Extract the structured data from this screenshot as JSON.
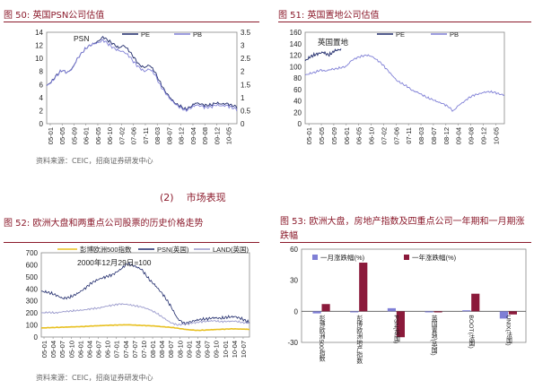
{
  "fig50": {
    "title": "图 50: 英国PSN公司估值"
  },
  "fig51": {
    "title": "图 51: 英国置地公司估值"
  },
  "fig52": {
    "title": "图 52: 欧洲大盘和两重点公司股票的历史价格走势"
  },
  "fig53": {
    "title": "图 53: 欧洲大盘，房地产指数及四重点公司一年期和一月期涨跌幅"
  },
  "source_top": "资料来源：CEIC，招商证券研发中心",
  "source_bottom": "资料来源：CEIC，招商证券研发中心",
  "section": {
    "num": "(2)",
    "title": "市场表现"
  },
  "colors": {
    "pe": "#1f2a6b",
    "pb": "#7f7fd6",
    "index": "#e8c020",
    "land": "#9a9acc",
    "bar1": "#7f7fd6",
    "bar2": "#8b1a3b",
    "title": "#8b1a2b"
  },
  "chart_data": [
    {
      "id": "fig50",
      "type": "line",
      "inset_label": "PSN",
      "x_ticks": [
        "05-01",
        "05-05",
        "05-09",
        "06-01",
        "06-05",
        "06-10",
        "07-02",
        "07-06",
        "07-11",
        "08-03",
        "08-07",
        "08-12",
        "09-04",
        "09-08",
        "09-12",
        "10-05"
      ],
      "ylim": [
        0,
        14
      ],
      "y_ticks": [
        0,
        2,
        4,
        6,
        8,
        10,
        12,
        14
      ],
      "y2lim": [
        0,
        3.5
      ],
      "y2_ticks": [
        0,
        0.5,
        1,
        1.5,
        2,
        2.5,
        3,
        3.5
      ],
      "series": [
        {
          "name": "PE",
          "axis": "left",
          "values": [
            5.8,
            6.5,
            7.5,
            8.2,
            7.8,
            8.5,
            10.0,
            11.0,
            11.8,
            12.2,
            12.6,
            13.3,
            12.7,
            12.2,
            11.6,
            12.0,
            11.2,
            10.1,
            9.0,
            8.6,
            9.0,
            8.0,
            6.4,
            5.0,
            4.0,
            3.1,
            2.7,
            2.2,
            2.6,
            3.2,
            3.0,
            2.8,
            2.9,
            3.2,
            3.0,
            3.1,
            2.8,
            2.6
          ]
        },
        {
          "name": "PB",
          "axis": "right",
          "values": [
            1.45,
            1.6,
            1.85,
            2.05,
            1.95,
            2.1,
            2.5,
            2.75,
            2.95,
            3.05,
            3.1,
            3.2,
            3.05,
            2.9,
            2.8,
            2.75,
            2.6,
            2.35,
            2.15,
            2.0,
            2.1,
            1.9,
            1.5,
            1.2,
            0.95,
            0.75,
            0.62,
            0.5,
            0.6,
            0.72,
            0.68,
            0.62,
            0.65,
            0.72,
            0.68,
            0.7,
            0.62,
            0.55
          ]
        }
      ]
    },
    {
      "id": "fig51",
      "type": "line",
      "inset_label": "英国置地",
      "x_ticks": [
        "05-01",
        "05-05",
        "05-09",
        "06-01",
        "06-05",
        "06-10",
        "07-02",
        "07-06",
        "07-11",
        "08-03",
        "08-07",
        "08-12",
        "09-04",
        "09-08",
        "09-12",
        "10-05"
      ],
      "ylim": [
        0,
        160
      ],
      "y_ticks": [
        0,
        20,
        40,
        60,
        80,
        100,
        120,
        140,
        160
      ],
      "series": [
        {
          "name": "PE",
          "axis": "left",
          "values": [
            110,
            118,
            122,
            125,
            120,
            128,
            130
          ]
        },
        {
          "name": "PB",
          "axis": "left",
          "values": [
            85,
            88,
            90,
            94,
            92,
            95,
            96,
            98,
            100,
            110,
            115,
            118,
            120,
            118,
            112,
            105,
            95,
            85,
            75,
            70,
            65,
            58,
            55,
            50,
            45,
            42,
            38,
            35,
            30,
            22,
            32,
            38,
            45,
            50,
            52,
            55,
            56,
            55,
            52,
            50
          ]
        }
      ]
    },
    {
      "id": "fig52",
      "type": "line",
      "annotation": "2000年12月29日=100",
      "x_ticks": [
        "05-01",
        "05-04",
        "05-07",
        "05-10",
        "06-01",
        "06-04",
        "06-07",
        "06-10",
        "07-01",
        "07-04",
        "07-07",
        "07-10",
        "08-01",
        "08-04",
        "08-07",
        "08-10",
        "09-01",
        "09-04",
        "09-07",
        "09-10",
        "10-01",
        "10-04",
        "10-07"
      ],
      "ylim": [
        0,
        700
      ],
      "y_ticks": [
        0,
        100,
        200,
        300,
        400,
        500,
        600,
        700
      ],
      "series": [
        {
          "name": "彭博欧洲500指数",
          "values": [
            75,
            78,
            80,
            83,
            85,
            88,
            92,
            95,
            98,
            100,
            102,
            98,
            95,
            92,
            85,
            80,
            70,
            60,
            55,
            58,
            62,
            65,
            68,
            66,
            64
          ]
        },
        {
          "name": "PSN(英国)",
          "values": [
            380,
            370,
            350,
            320,
            330,
            360,
            400,
            450,
            480,
            500,
            520,
            560,
            610,
            590,
            560,
            480,
            420,
            350,
            260,
            150,
            110,
            130,
            145,
            150,
            160,
            155,
            165,
            170,
            150,
            120
          ]
        },
        {
          "name": "LAND(英国)",
          "values": [
            200,
            205,
            200,
            210,
            215,
            220,
            225,
            235,
            240,
            255,
            265,
            275,
            270,
            260,
            250,
            230,
            200,
            160,
            120,
            100,
            110,
            115,
            125,
            130,
            135,
            128,
            130,
            132,
            120,
            115
          ]
        }
      ]
    },
    {
      "id": "fig53",
      "type": "bar",
      "categories": [
        "彭博欧洲500指数",
        "彭博欧洲地产指数",
        "PSN(英国)",
        "英国置地(英国)",
        "BOOT(法国)",
        "UNIX(法国)"
      ],
      "ylim": [
        -30,
        60
      ],
      "y_ticks": [
        -30,
        0,
        30,
        60
      ],
      "series": [
        {
          "name": "一月涨跌幅(%)",
          "values": [
            -2,
            -1,
            3,
            -1,
            1,
            -7
          ]
        },
        {
          "name": "一年涨跌幅(%)",
          "values": [
            7,
            47,
            -25,
            -1,
            17,
            -3
          ]
        }
      ]
    }
  ]
}
